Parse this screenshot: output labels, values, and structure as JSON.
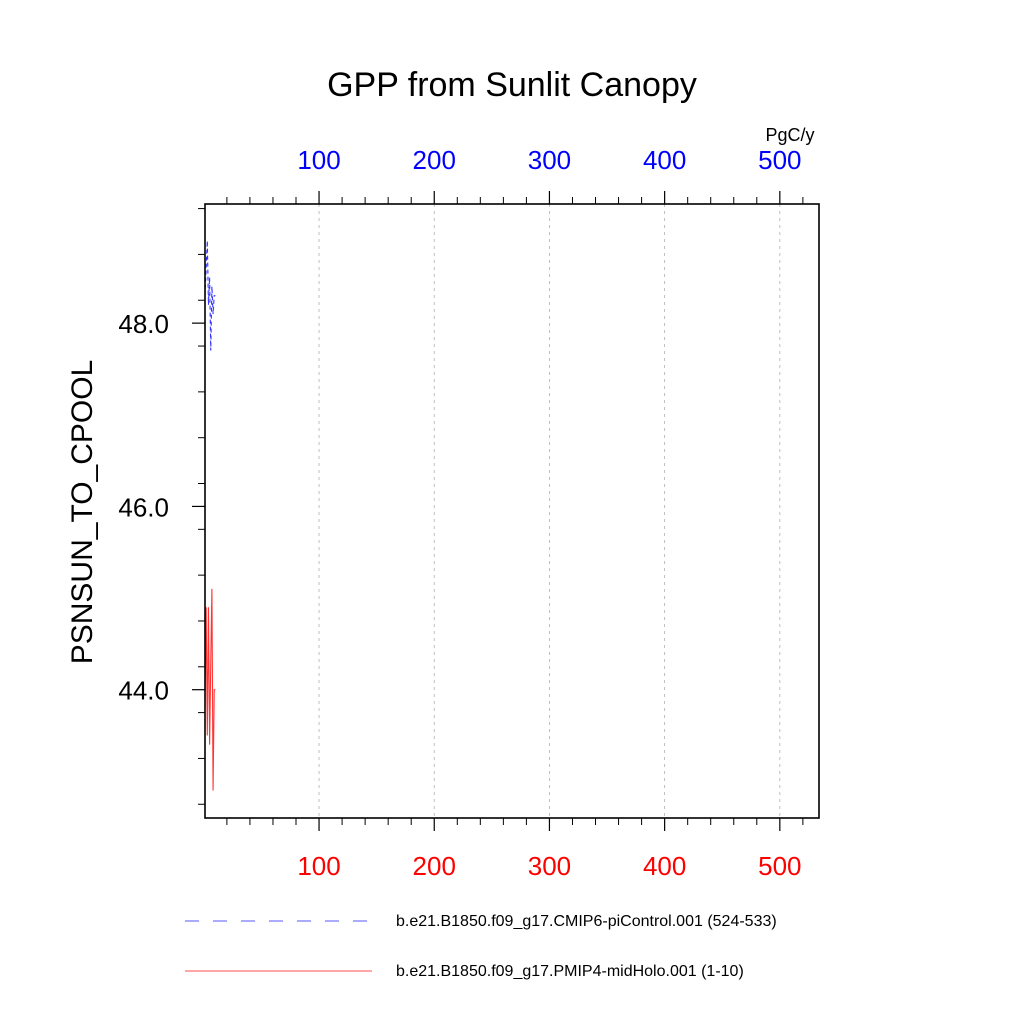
{
  "chart_data": {
    "type": "line",
    "title": "GPP from Sunlit Canopy",
    "ylabel": "PSNSUN_TO_CPOOL",
    "units": "PgC/y",
    "xlim": [
      1,
      534
    ],
    "ylim": [
      42.6,
      49.3
    ],
    "x_ticks_bottom": [
      "100",
      "200",
      "300",
      "400",
      "500"
    ],
    "x_ticks_top": [
      "100",
      "200",
      "300",
      "400",
      "500"
    ],
    "y_ticks": [
      "44.0",
      "46.0",
      "48.0"
    ],
    "grid": "vertical dashed at x major ticks",
    "colors": {
      "axis": "#000000",
      "grid": "#b0b0b0",
      "bottom_ticks": "#ff0000",
      "top_ticks": "#0000ff"
    },
    "series": [
      {
        "name": "b.e21.B1850.f09_g17.CMIP6-piControl.001 (524-533)",
        "color": "#0000ff",
        "dash": "dashed",
        "x": [
          1,
          2,
          3,
          4,
          5,
          6,
          7,
          8,
          9,
          10
        ],
        "y": [
          48.3,
          48.6,
          48.9,
          48.2,
          48.5,
          47.7,
          48.4,
          48.1,
          48.3,
          48.3
        ]
      },
      {
        "name": "b.e21.B1850.f09_g17.PMIP4-midHolo.001 (1-10)",
        "color": "#ff0000",
        "dash": "solid",
        "x": [
          1,
          2,
          3,
          4,
          5,
          6,
          7,
          8,
          9,
          10
        ],
        "y": [
          43.8,
          44.9,
          43.5,
          44.9,
          43.4,
          44.3,
          45.1,
          42.9,
          44.0,
          44.0
        ]
      }
    ],
    "legend_position": "bottom"
  }
}
